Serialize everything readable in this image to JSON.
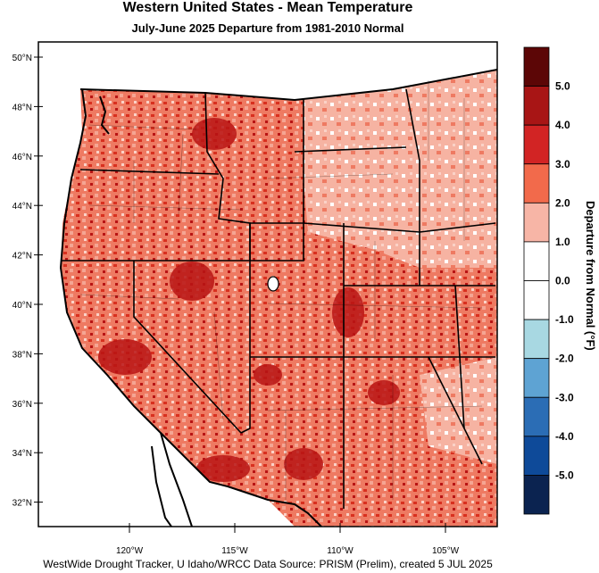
{
  "title": "Western United States - Mean Temperature",
  "subtitle": "July-June 2025  Departure from 1981-2010 Normal",
  "footer": "WestWide Drought Tracker, U Idaho/WRCC Data Source: PRISM (Prelim), created  5 JUL 2025",
  "lat_labels": [
    "50°N",
    "48°N",
    "46°N",
    "44°N",
    "42°N",
    "40°N",
    "38°N",
    "36°N",
    "34°N",
    "32°N"
  ],
  "lon_labels": [
    "120°W",
    "115°W",
    "110°W",
    "105°W"
  ],
  "colorbar": {
    "title": "Departure from Normal (°F)",
    "labels": [
      "5.0",
      "4.0",
      "3.0",
      "2.0",
      "1.0",
      "0.0",
      "-1.0",
      "-2.0",
      "-3.0",
      "-4.0",
      "-5.0"
    ],
    "colors": [
      "#5c0606",
      "#a81515",
      "#d22424",
      "#f26a4b",
      "#f7b5a6",
      "#ffffff",
      "#ffffff",
      "#a8d8e2",
      "#5ea3d3",
      "#2b6db5",
      "#0e4a99",
      "#0b2350"
    ]
  },
  "map_colors": {
    "deep_red": "#b81414",
    "red": "#e0402c",
    "salmon": "#f5a593",
    "light_blue": "#a8d8e2"
  }
}
